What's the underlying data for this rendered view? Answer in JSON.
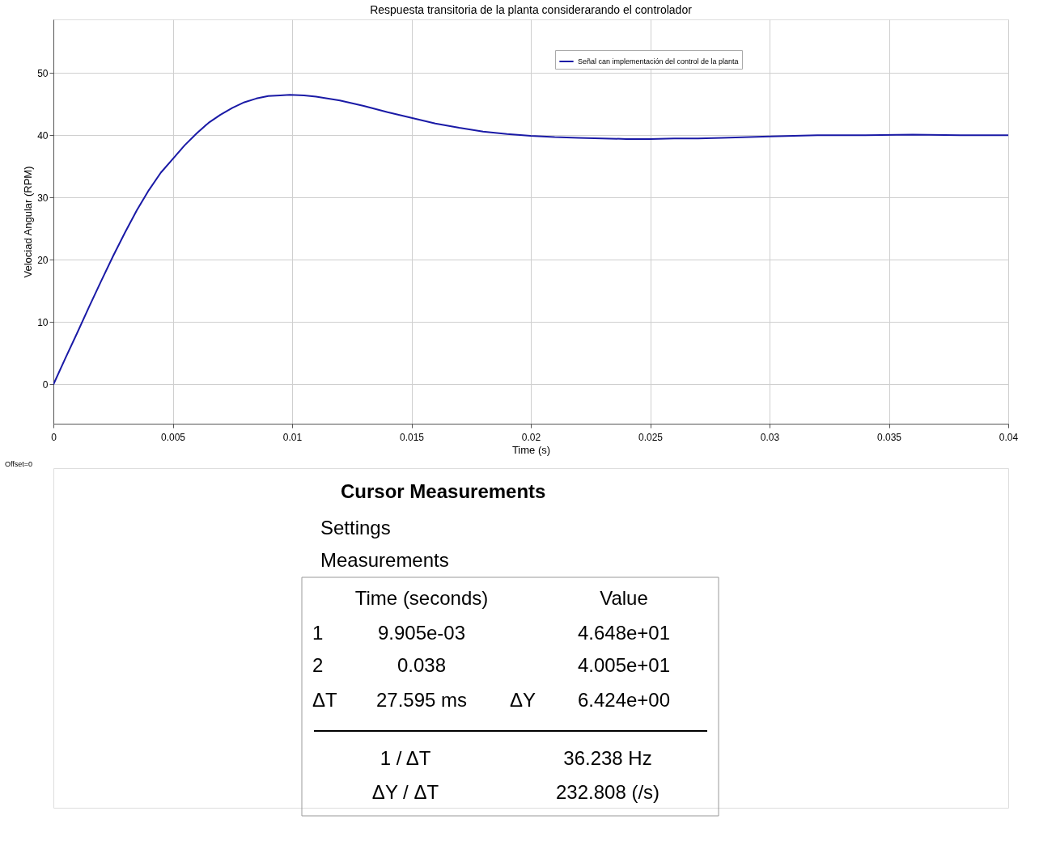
{
  "chart_data": {
    "type": "line",
    "title": "Respuesta transitoria de la planta considerarando el controlador",
    "xlabel": "Time (s)",
    "ylabel": "Velociad Angular (RPM)",
    "series": [
      {
        "name": "Señal can implementación del control de la planta",
        "color": "#1a1aa6",
        "x": [
          0,
          0.0005,
          0.001,
          0.0015,
          0.002,
          0.0025,
          0.003,
          0.0035,
          0.004,
          0.0045,
          0.005,
          0.0055,
          0.006,
          0.0065,
          0.007,
          0.0075,
          0.008,
          0.0085,
          0.009,
          0.0095,
          0.0099,
          0.0105,
          0.011,
          0.012,
          0.013,
          0.014,
          0.015,
          0.016,
          0.017,
          0.018,
          0.019,
          0.02,
          0.021,
          0.022,
          0.023,
          0.024,
          0.025,
          0.026,
          0.027,
          0.028,
          0.03,
          0.032,
          0.034,
          0.036,
          0.038,
          0.04
        ],
        "values": [
          0,
          4.2,
          8.3,
          12.5,
          16.6,
          20.6,
          24.4,
          28,
          31.2,
          34,
          36.2,
          38.4,
          40.3,
          42,
          43.3,
          44.4,
          45.3,
          45.9,
          46.3,
          46.4,
          46.5,
          46.4,
          46.2,
          45.6,
          44.7,
          43.7,
          42.8,
          41.9,
          41.2,
          40.6,
          40.2,
          39.9,
          39.7,
          39.6,
          39.5,
          39.4,
          39.4,
          39.5,
          39.5,
          39.6,
          39.8,
          40,
          40,
          40.1,
          40,
          40
        ]
      }
    ],
    "xlim": [
      0,
      0.04
    ],
    "xticks": [
      0,
      0.005,
      0.01,
      0.015,
      0.02,
      0.025,
      0.03,
      0.035,
      0.04
    ],
    "ylim": [
      -6.3,
      58.6
    ],
    "yticks": [
      0,
      10,
      20,
      30,
      40,
      50
    ],
    "grid": true,
    "legend": "top right",
    "marker": "none",
    "line_style": "solid",
    "annotations": [
      "Offset=0",
      "Cursor Measurements",
      "Settings",
      "Measurements",
      "Time (seconds)",
      "Value",
      "1",
      "9.905e-03",
      "4.648e+01",
      "2",
      "0.038",
      "4.005e+01",
      "ΔT",
      "27.595 ms",
      "ΔY",
      "6.424e+00",
      "1 / ΔT",
      "36.238 Hz",
      "ΔY / ΔT",
      "232.808 (/s)"
    ]
  }
}
